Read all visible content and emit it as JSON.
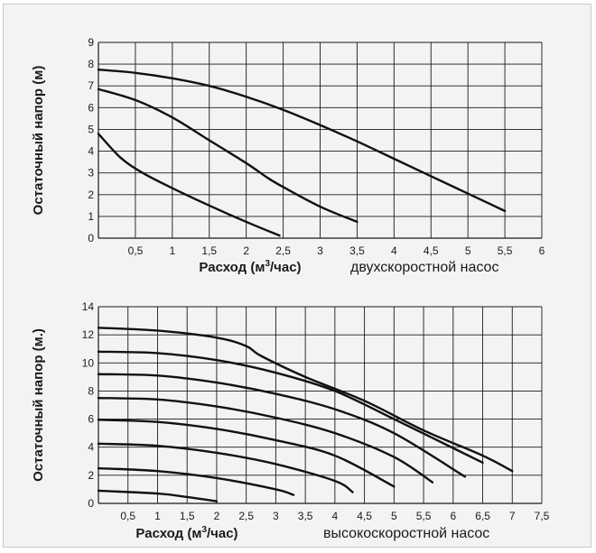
{
  "chart_data": [
    {
      "type": "line",
      "ylabel": "Остаточный напор (м)",
      "xlabel_main": "Расход (м",
      "xlabel_sup": "3",
      "xlabel_tail": "/час)",
      "caption": "двухскоростной насос",
      "xlim": [
        0,
        6
      ],
      "ylim": [
        0,
        9
      ],
      "x_ticks": [
        "0,5",
        "1",
        "1,5",
        "2",
        "2,5",
        "3",
        "3,5",
        "4",
        "4,5",
        "5",
        "5,5",
        "6"
      ],
      "y_ticks": [
        "0",
        "1",
        "2",
        "3",
        "4",
        "5",
        "6",
        "7",
        "8",
        "9"
      ],
      "grid": true,
      "series": [
        {
          "x": [
            0,
            0.5,
            1,
            1.5,
            2,
            2.5,
            3,
            3.5,
            4,
            4.5,
            5,
            5.5
          ],
          "y": [
            7.75,
            7.6,
            7.35,
            7.0,
            6.5,
            5.9,
            5.2,
            4.45,
            3.65,
            2.85,
            2.05,
            1.25
          ]
        },
        {
          "x": [
            0,
            0.5,
            1,
            1.5,
            2,
            2.3,
            2.5,
            3,
            3.5
          ],
          "y": [
            6.85,
            6.35,
            5.55,
            4.5,
            3.45,
            2.75,
            2.35,
            1.45,
            0.75
          ]
        },
        {
          "x": [
            0,
            0.3,
            0.6,
            1,
            1.5,
            2,
            2.45
          ],
          "y": [
            4.8,
            3.7,
            3.0,
            2.3,
            1.5,
            0.75,
            0.12
          ]
        }
      ]
    },
    {
      "type": "line",
      "ylabel": "Остаточный напор (м.)",
      "xlabel_main": "Расход (м",
      "xlabel_sup": "3",
      "xlabel_tail": "/час)",
      "caption": "высокоскоростной насос",
      "xlim": [
        0,
        7.5
      ],
      "ylim": [
        0,
        14
      ],
      "x_ticks": [
        "0,5",
        "1",
        "1,5",
        "2",
        "2,5",
        "3",
        "3,5",
        "4",
        "4,5",
        "5",
        "5,5",
        "6",
        "6,5",
        "7",
        "7,5"
      ],
      "y_ticks": [
        "0",
        "2",
        "4",
        "6",
        "8",
        "10",
        "12",
        "14"
      ],
      "grid": true,
      "series": [
        {
          "x": [
            0,
            1,
            2,
            2.5,
            2.75,
            3.5,
            4.5,
            5.5,
            6.5,
            7
          ],
          "y": [
            12.5,
            12.3,
            11.8,
            11.2,
            10.5,
            9.0,
            7.3,
            5.2,
            3.4,
            2.3
          ]
        },
        {
          "x": [
            0,
            1,
            2,
            3,
            4,
            5,
            6.5
          ],
          "y": [
            10.8,
            10.7,
            10.2,
            9.3,
            8.0,
            6.0,
            2.9
          ]
        },
        {
          "x": [
            0,
            1,
            2,
            3,
            4,
            5,
            6.2
          ],
          "y": [
            9.2,
            9.1,
            8.6,
            7.8,
            6.7,
            5.0,
            1.9
          ]
        },
        {
          "x": [
            0,
            1,
            2,
            3,
            4,
            5,
            5.65
          ],
          "y": [
            7.5,
            7.4,
            6.9,
            6.1,
            5.0,
            3.3,
            1.5
          ]
        },
        {
          "x": [
            0,
            1,
            2,
            3,
            4,
            5
          ],
          "y": [
            5.95,
            5.8,
            5.3,
            4.5,
            3.4,
            1.2
          ]
        },
        {
          "x": [
            0,
            1,
            2,
            3,
            4,
            4.3
          ],
          "y": [
            4.25,
            4.1,
            3.6,
            2.8,
            1.6,
            0.8
          ]
        },
        {
          "x": [
            0,
            1,
            2,
            3,
            3.3
          ],
          "y": [
            2.5,
            2.3,
            1.8,
            1.0,
            0.6
          ]
        },
        {
          "x": [
            0,
            1,
            1.5,
            2
          ],
          "y": [
            0.9,
            0.7,
            0.45,
            0.15
          ]
        }
      ]
    }
  ]
}
